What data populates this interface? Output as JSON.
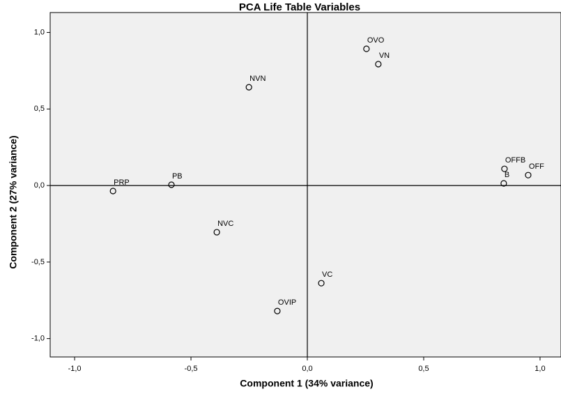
{
  "chart_data": {
    "type": "scatter",
    "title": "PCA Life Table Variables",
    "x_label": "Component 1 (34% variance)",
    "y_label": "Component 2 (27% variance)",
    "labels": [
      "OVO",
      "VN",
      "NVN",
      "OFFB",
      "OFF",
      "B",
      "PRP",
      "PB",
      "NVC",
      "VC",
      "OVIP"
    ],
    "x": [
      0.254,
      0.305,
      -0.251,
      0.847,
      0.949,
      0.844,
      -0.835,
      -0.584,
      -0.389,
      0.06,
      -0.129
    ],
    "series": [
      {
        "values": [
          0.893,
          0.793,
          0.642,
          0.109,
          0.068,
          0.014,
          -0.036,
          0.005,
          -0.305,
          -0.638,
          -0.82
        ]
      }
    ],
    "xlim": [
      -1.105,
      1.09
    ],
    "ylim": [
      -1.12,
      1.13
    ],
    "xticks": [
      {
        "value": -1.0,
        "label": "-1,0"
      },
      {
        "value": -0.5,
        "label": "-0,5"
      },
      {
        "value": 0,
        "label": "0,0"
      },
      {
        "value": 0.5,
        "label": "0,5"
      },
      {
        "value": 1.0,
        "label": "1,0"
      }
    ],
    "yticks": [
      {
        "value": -1.0,
        "label": "-1,0"
      },
      {
        "value": -0.5,
        "label": "-0,5"
      },
      {
        "value": 0,
        "label": "0,0"
      },
      {
        "value": 0.5,
        "label": "0,5"
      },
      {
        "value": 1.0,
        "label": "1,0"
      }
    ]
  }
}
